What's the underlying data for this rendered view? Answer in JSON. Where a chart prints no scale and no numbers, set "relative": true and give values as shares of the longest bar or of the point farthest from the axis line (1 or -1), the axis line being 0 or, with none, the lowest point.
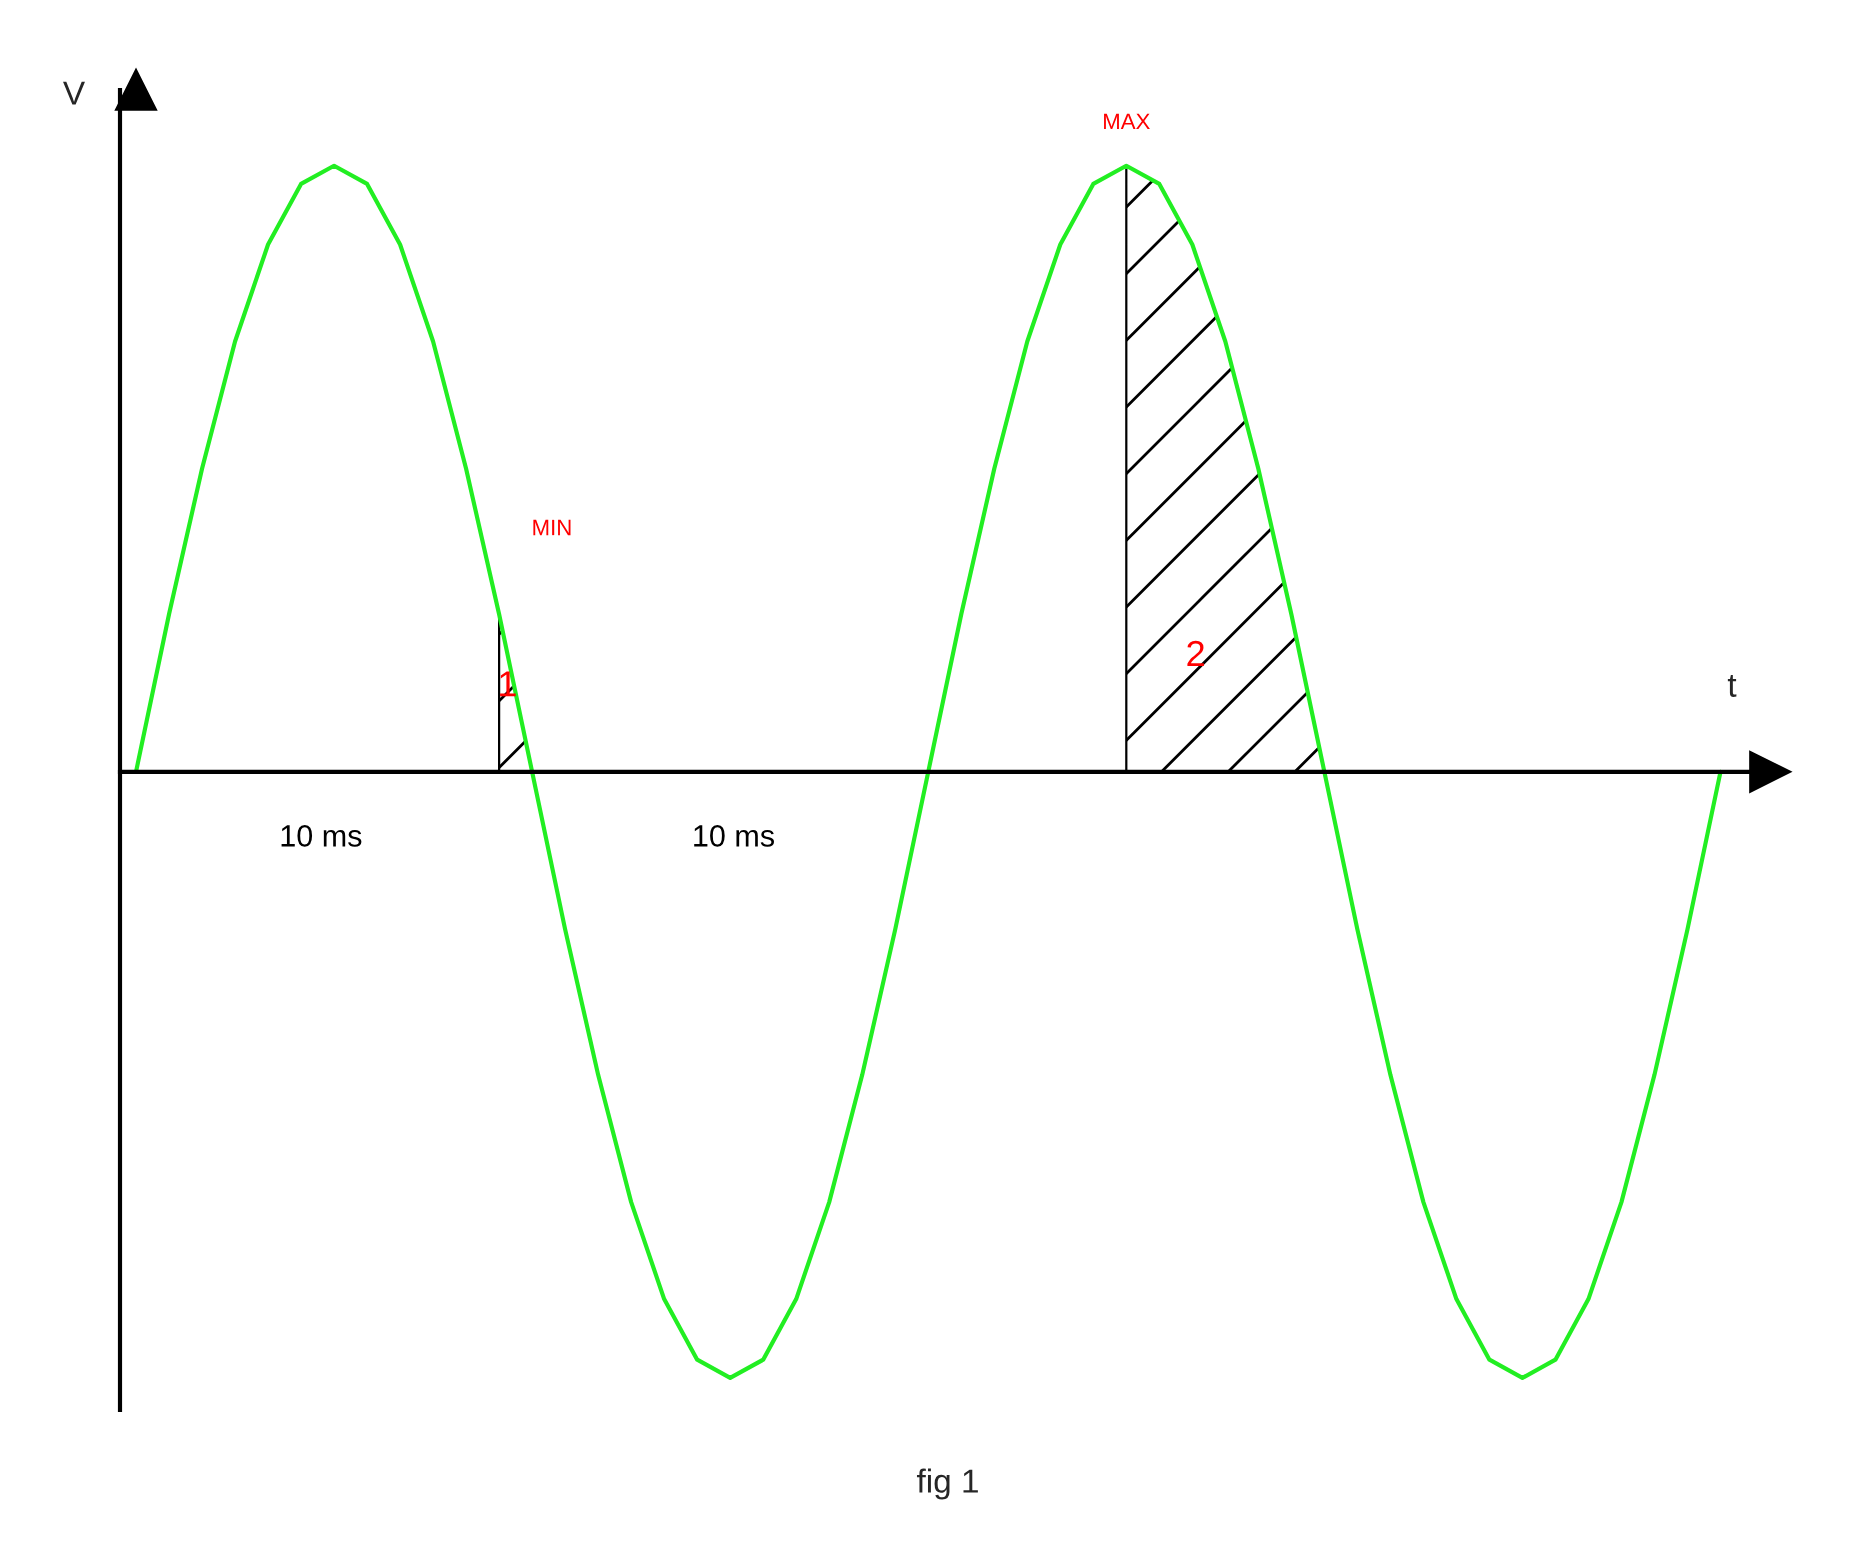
{
  "chart_data": {
    "type": "line",
    "relative": true,
    "xlabel": "t",
    "ylabel": "V",
    "categories": [
      null,
      null,
      null,
      null,
      null,
      null,
      null,
      null,
      null,
      null,
      null,
      null,
      null,
      null,
      null,
      null,
      null,
      null,
      null,
      null,
      null,
      null,
      null,
      null,
      null,
      null,
      null,
      null,
      null,
      null,
      null,
      null,
      null,
      null,
      null,
      null,
      null,
      null,
      null,
      null,
      null,
      null,
      null,
      null,
      null,
      null,
      null,
      null,
      null
    ],
    "series": [
      {
        "color": "#22ee22",
        "values": [
          0,
          0.26,
          0.5,
          0.71,
          0.87,
          0.97,
          1,
          0.97,
          0.87,
          0.71,
          0.5,
          0.26,
          0,
          -0.26,
          -0.5,
          -0.71,
          -0.87,
          -0.97,
          -1,
          -0.97,
          -0.87,
          -0.71,
          -0.5,
          -0.26,
          0,
          0.26,
          0.5,
          0.71,
          0.87,
          0.97,
          1,
          0.97,
          0.87,
          0.71,
          0.5,
          0.26,
          0,
          -0.26,
          -0.5,
          -0.71,
          -0.87,
          -0.97,
          -1,
          -0.97,
          -0.87,
          -0.71,
          -0.5,
          -0.26,
          0
        ]
      },
      {
        "type": "area",
        "color": "#000000",
        "values": [
          null,
          null,
          null,
          null,
          null,
          null,
          null,
          null,
          null,
          null,
          null,
          0.26,
          0,
          null,
          null,
          null,
          null,
          null,
          null,
          null,
          null,
          null,
          null,
          null,
          null,
          null,
          null,
          null,
          null,
          null,
          null,
          null,
          null,
          null,
          null,
          null,
          null,
          null,
          null,
          null,
          null,
          null,
          null,
          null,
          null,
          null,
          null,
          null,
          null
        ]
      },
      {
        "type": "area",
        "color": "#000000",
        "values": [
          null,
          null,
          null,
          null,
          null,
          null,
          null,
          null,
          null,
          null,
          null,
          null,
          null,
          null,
          null,
          null,
          null,
          null,
          null,
          null,
          null,
          null,
          null,
          null,
          null,
          null,
          null,
          null,
          null,
          null,
          1,
          0.97,
          0.87,
          0.71,
          0.5,
          0.26,
          0,
          null,
          null,
          null,
          null,
          null,
          null,
          null,
          null,
          null,
          null,
          null,
          null
        ]
      }
    ],
    "annotations": [
      "MIN",
      "1",
      "MAX",
      "2",
      "10 ms",
      "10 ms",
      "fig 1"
    ]
  }
}
